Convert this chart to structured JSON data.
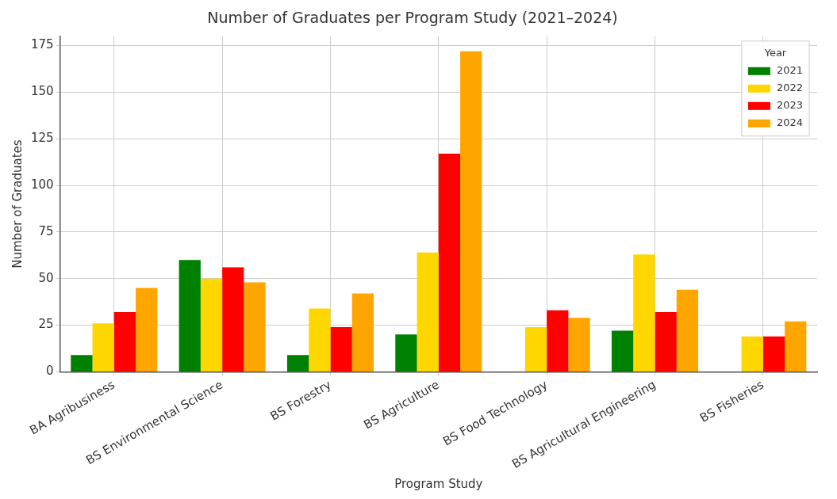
{
  "chart_data": {
    "type": "bar",
    "title": "Number of Graduates per Program Study (2021–2024)",
    "xlabel": "Program Study",
    "ylabel": "Number of Graduates",
    "legend_title": "Year",
    "categories": [
      "BA Agribusiness",
      "BS Environmental Science",
      "BS Forestry",
      "BS Agriculture",
      "BS Food Technology",
      "BS Agricultural Engineering",
      "BS Fisheries"
    ],
    "series": [
      {
        "name": "2021",
        "color": "#008000",
        "values": [
          9,
          60,
          9,
          20,
          0,
          22,
          0
        ]
      },
      {
        "name": "2022",
        "color": "#ffd700",
        "values": [
          26,
          50,
          34,
          64,
          24,
          63,
          19
        ]
      },
      {
        "name": "2023",
        "color": "#ff0000",
        "values": [
          32,
          56,
          24,
          117,
          33,
          32,
          19
        ]
      },
      {
        "name": "2024",
        "color": "#ffa500",
        "values": [
          45,
          48,
          42,
          172,
          29,
          44,
          27
        ]
      }
    ],
    "ylim": [
      0,
      180
    ],
    "yticks": [
      0,
      25,
      50,
      75,
      100,
      125,
      150,
      175
    ],
    "grid": true,
    "legend": "top right"
  }
}
